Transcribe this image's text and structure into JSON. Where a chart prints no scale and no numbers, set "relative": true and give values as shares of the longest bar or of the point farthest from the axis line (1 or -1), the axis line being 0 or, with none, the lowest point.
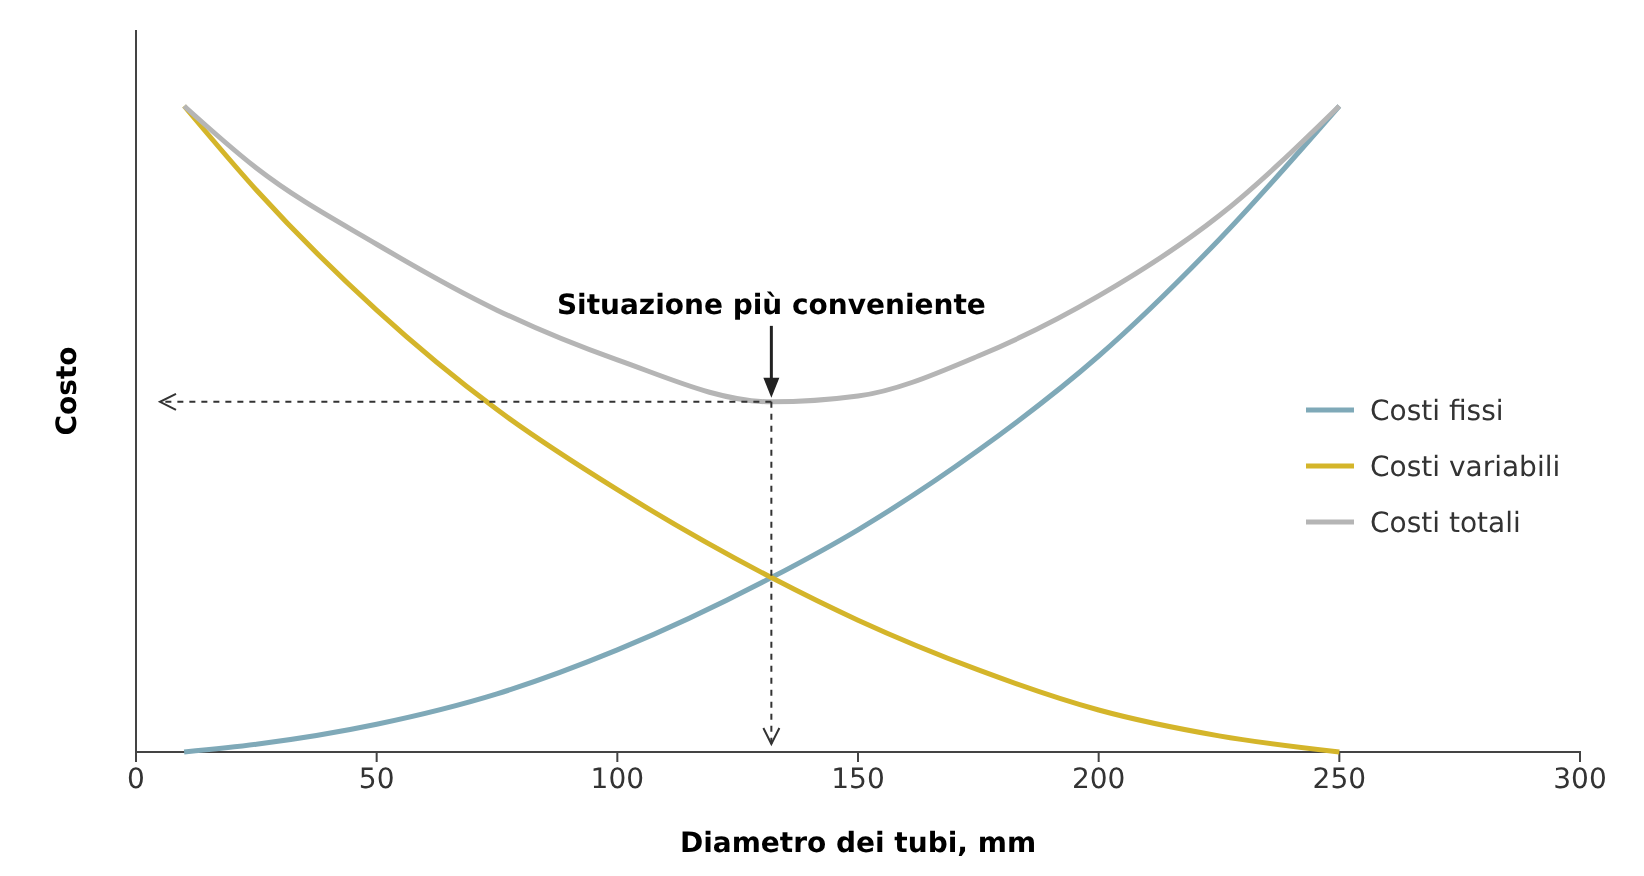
{
  "chart_data": {
    "type": "line",
    "relative": true,
    "xlabel": "Diametro dei tubi, mm",
    "ylabel": "Costo",
    "x": [
      10,
      25,
      50,
      75,
      100,
      132,
      150,
      175,
      200,
      225,
      250
    ],
    "xlim": [
      0,
      300
    ],
    "xticks": [
      0,
      50,
      100,
      150,
      200,
      250,
      300
    ],
    "series": [
      {
        "name": "Costi fissi",
        "color": "#7fa9b8",
        "values": [
          0,
          0.012,
          0.043,
          0.09,
          0.158,
          0.27,
          0.344,
          0.467,
          0.613,
          0.793,
          1
        ]
      },
      {
        "name": "Costi variabili",
        "color": "#d4b52a",
        "values": [
          1,
          0.87,
          0.684,
          0.53,
          0.406,
          0.27,
          0.204,
          0.127,
          0.065,
          0.025,
          0
        ]
      },
      {
        "name": "Costi totali",
        "color": "#b5b5b5",
        "values": [
          1,
          0.904,
          0.786,
          0.684,
          0.607,
          0.542,
          0.551,
          0.613,
          0.706,
          0.83,
          1
        ]
      }
    ],
    "annotations": [
      {
        "text": "Situazione più conveniente",
        "x": 132,
        "y": 0.542
      }
    ],
    "legend": "right",
    "grid": false,
    "marker": "none",
    "line_style": "solid"
  }
}
